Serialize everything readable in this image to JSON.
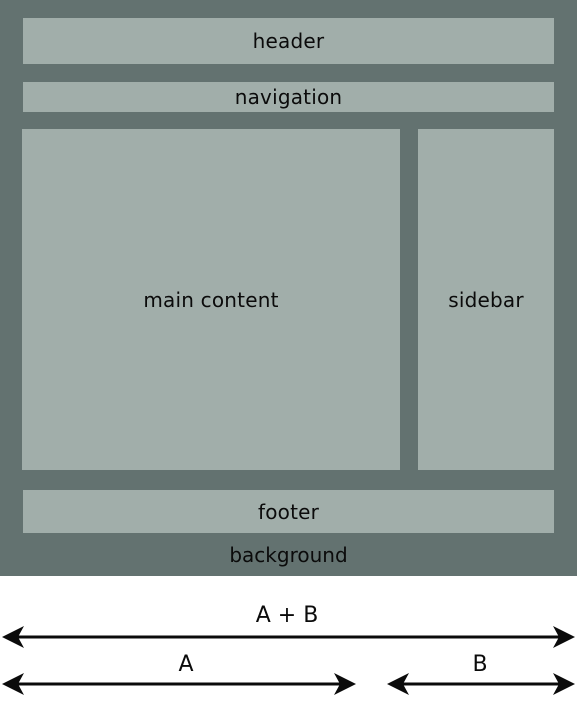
{
  "boxes": {
    "header": "header",
    "navigation": "navigation",
    "main_content": "main content",
    "sidebar": "sidebar",
    "footer": "footer",
    "background": "background"
  },
  "dimensions": {
    "total": "A + B",
    "a": "A",
    "b": "B"
  },
  "colors": {
    "background": "#637270",
    "box": "#a1aeaa",
    "text": "#0b0b0b"
  }
}
